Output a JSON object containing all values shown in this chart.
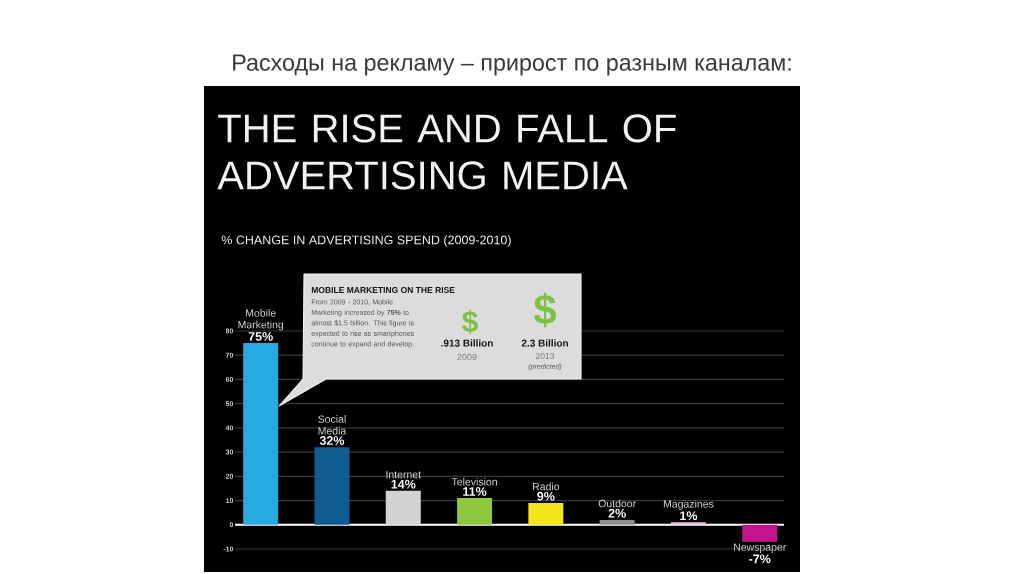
{
  "chart_data": {
    "type": "bar",
    "title": "THE RISE AND FALL OF ADVERTISING MEDIA",
    "subtitle": "% CHANGE IN ADVERTISING SPEND (2009-2010)",
    "categories": [
      "Mobile Marketing",
      "Social Media",
      "Internet",
      "Television",
      "Radio",
      "Outdoor",
      "Magazines",
      "Newspaper"
    ],
    "values": [
      75,
      32,
      14,
      11,
      9,
      2,
      1,
      -7
    ],
    "value_labels": [
      "75%",
      "32%",
      "14%",
      "11%",
      "9%",
      "2%",
      "1%",
      "-7%"
    ],
    "colors": [
      "#27a9e1",
      "#0f5c93",
      "#d3d3d3",
      "#8dc63f",
      "#f2e51a",
      "#8c8c8c",
      "#f6bcd9",
      "#c2168f"
    ],
    "ylim": [
      -10,
      80
    ],
    "yticks": [
      -10,
      0,
      10,
      20,
      30,
      40,
      50,
      60,
      70,
      80
    ],
    "grid": "y",
    "annotations": [
      "Расходы на рекламу – прирост по разным каналам:",
      "MOBILE MARKETING ON THE RISE",
      "From 2009 - 2010, Mobile Marketing increased by **75%** to almost $1.5 billion. This figure is expected to rise as smartphones continue to expand and develop.",
      "$",
      ".913 Billion",
      "2009",
      "$",
      "2.3 Billion",
      "2013",
      "(predicted)"
    ]
  }
}
